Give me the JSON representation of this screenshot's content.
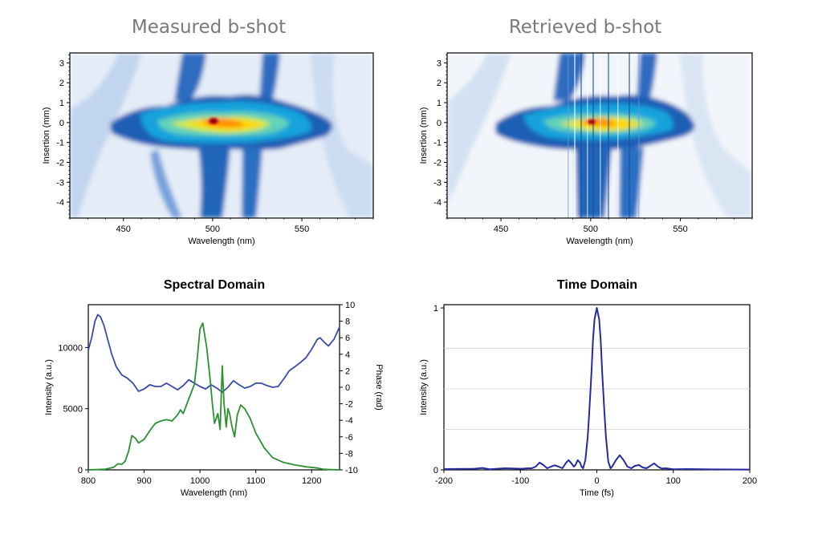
{
  "chart_data": [
    {
      "type": "heatmap",
      "title": "Measured b-shot",
      "xlabel": "Wavelength (nm)",
      "ylabel": "Insertion (mm)",
      "xlim": [
        420,
        590
      ],
      "ylim": [
        -4.8,
        3.5
      ],
      "xticks": [
        450,
        500,
        550
      ],
      "yticks": [
        3,
        2,
        1,
        0,
        -1,
        -2,
        -3,
        -4
      ],
      "xtick_labels": [
        "450",
        "500",
        "550"
      ],
      "ytick_labels": [
        "3",
        "2",
        "1",
        "0",
        "-1",
        "-2",
        "-3",
        "-4"
      ],
      "colormap": [
        "#ffffff",
        "#c6d9ef",
        "#1f5fb5",
        "#13a3dc",
        "#62d2b8",
        "#d6ea3a",
        "#ffd500",
        "#ff7a00",
        "#c8001b"
      ],
      "peak": {
        "wavelength": 501,
        "insertion": 0.1
      }
    },
    {
      "type": "heatmap",
      "title": "Retrieved b-shot",
      "xlabel": "Wavelength (nm)",
      "ylabel": "Insertion (mm)",
      "xlim": [
        420,
        590
      ],
      "ylim": [
        -4.8,
        3.5
      ],
      "xticks": [
        450,
        500,
        550
      ],
      "yticks": [
        3,
        2,
        1,
        0,
        -1,
        -2,
        -3,
        -4
      ],
      "xtick_labels": [
        "450",
        "500",
        "550"
      ],
      "ytick_labels": [
        "3",
        "2",
        "1",
        "0",
        "-1",
        "-2",
        "-3",
        "-4"
      ],
      "colormap": [
        "#ffffff",
        "#c6d9ef",
        "#1f5fb5",
        "#13a3dc",
        "#62d2b8",
        "#d6ea3a",
        "#ffd500",
        "#ff7a00",
        "#c8001b"
      ],
      "peak": {
        "wavelength": 501,
        "insertion": 0.1
      }
    },
    {
      "type": "line",
      "title": "Spectral Domain",
      "xlabel": "Wavelength (nm)",
      "ylabel": "Intensity (a.u.)",
      "y2label": "Phase (rad)",
      "xlim": [
        800,
        1250
      ],
      "ylim": [
        0,
        13500
      ],
      "y2lim": [
        -10,
        10
      ],
      "xticks": [
        800,
        900,
        1000,
        1100,
        1200
      ],
      "yticks": [
        0,
        5000,
        10000
      ],
      "y2ticks": [
        10,
        8,
        6,
        4,
        2,
        0,
        -2,
        -4,
        -6,
        -8,
        -10
      ],
      "xtick_labels": [
        "800",
        "900",
        "1000",
        "1100",
        "1200"
      ],
      "ytick_labels": [
        "0",
        "5000",
        "10000"
      ],
      "y2tick_labels": [
        "10",
        "8",
        "6",
        "4",
        "2",
        "0",
        "-2",
        "-4",
        "-6",
        "-8",
        "-10"
      ],
      "series": [
        {
          "axis": "right",
          "color": "#3a4aa8",
          "x": [
            800,
            806,
            812,
            817,
            822,
            828,
            834,
            842,
            850,
            860,
            870,
            880,
            890,
            900,
            910,
            920,
            930,
            940,
            950,
            960,
            970,
            980,
            990,
            1000,
            1010,
            1020,
            1030,
            1040,
            1050,
            1060,
            1070,
            1080,
            1090,
            1100,
            1110,
            1120,
            1130,
            1140,
            1150,
            1160,
            1170,
            1180,
            1190,
            1200,
            1210,
            1215,
            1222,
            1230,
            1240,
            1250
          ],
          "y": [
            4.5,
            6.0,
            8.0,
            8.8,
            8.5,
            7.5,
            6.0,
            4.0,
            2.5,
            1.5,
            1.1,
            0.5,
            -0.5,
            -0.2,
            0.3,
            0.1,
            0.1,
            0.5,
            0.1,
            -0.3,
            0.2,
            0.9,
            0.5,
            0.1,
            -0.2,
            0.3,
            -0.1,
            -0.6,
            0.0,
            0.8,
            0.3,
            -0.1,
            0.1,
            0.5,
            0.5,
            0.2,
            0.0,
            0.1,
            1.0,
            2.0,
            2.5,
            3.0,
            3.6,
            4.6,
            5.8,
            6.0,
            5.5,
            5.0,
            5.8,
            7.3
          ]
        },
        {
          "axis": "left",
          "color": "#2b9132",
          "x": [
            800,
            830,
            845,
            853,
            860,
            866,
            872,
            878,
            884,
            890,
            900,
            910,
            920,
            930,
            940,
            950,
            960,
            965,
            970,
            980,
            990,
            995,
            1000,
            1005,
            1012,
            1018,
            1022,
            1026,
            1032,
            1036,
            1040,
            1043,
            1047,
            1050,
            1053,
            1057,
            1062,
            1067,
            1073,
            1080,
            1090,
            1100,
            1115,
            1130,
            1150,
            1170,
            1190,
            1210,
            1220,
            1230,
            1250
          ],
          "y": [
            0,
            50,
            200,
            500,
            450,
            700,
            1500,
            2800,
            2600,
            2200,
            2500,
            3200,
            3800,
            4000,
            4100,
            4000,
            4500,
            4900,
            4600,
            5800,
            7000,
            9000,
            11500,
            12000,
            10000,
            7500,
            5500,
            3800,
            4600,
            3300,
            8500,
            5500,
            3500,
            5000,
            4600,
            3600,
            2700,
            4500,
            5300,
            5000,
            4200,
            3000,
            1800,
            1000,
            600,
            400,
            250,
            150,
            60,
            30,
            0
          ]
        }
      ]
    },
    {
      "type": "line",
      "title": "Time Domain",
      "xlabel": "Time (fs)",
      "ylabel": "Intensity (a.u.)",
      "xlim": [
        -200,
        200
      ],
      "ylim": [
        0,
        1.02
      ],
      "xticks": [
        -200,
        -100,
        0,
        100,
        200
      ],
      "yticks": [
        0,
        1
      ],
      "xtick_labels": [
        "-200",
        "-100",
        "0",
        "100",
        "200"
      ],
      "ytick_labels": [
        "0",
        "1"
      ],
      "grid_y": [
        0.25,
        0.5,
        0.75
      ],
      "series": [
        {
          "color": "#262b9e",
          "x": [
            -200,
            -160,
            -150,
            -140,
            -120,
            -100,
            -95,
            -90,
            -85,
            -80,
            -75,
            -70,
            -65,
            -60,
            -55,
            -50,
            -45,
            -40,
            -37,
            -34,
            -30,
            -28,
            -25,
            -22,
            -20,
            -18,
            -15,
            -12,
            -10,
            -7,
            -5,
            -3,
            0,
            3,
            5,
            7,
            10,
            12,
            15,
            18,
            20,
            25,
            30,
            35,
            40,
            45,
            50,
            55,
            60,
            65,
            70,
            75,
            80,
            85,
            90,
            100,
            120,
            150,
            200
          ],
          "y": [
            0.005,
            0.007,
            0.012,
            0.004,
            0.01,
            0.007,
            0.008,
            0.01,
            0.01,
            0.02,
            0.045,
            0.03,
            0.01,
            0.02,
            0.028,
            0.02,
            0.01,
            0.045,
            0.06,
            0.045,
            0.02,
            0.03,
            0.06,
            0.045,
            0.02,
            0.01,
            0.06,
            0.2,
            0.35,
            0.6,
            0.8,
            0.93,
            1.0,
            0.93,
            0.8,
            0.6,
            0.35,
            0.2,
            0.05,
            0.01,
            0.02,
            0.06,
            0.09,
            0.06,
            0.02,
            0.01,
            0.025,
            0.03,
            0.015,
            0.01,
            0.025,
            0.04,
            0.02,
            0.008,
            0.01,
            0.004,
            0.005,
            0.003,
            0.002
          ]
        }
      ]
    }
  ]
}
